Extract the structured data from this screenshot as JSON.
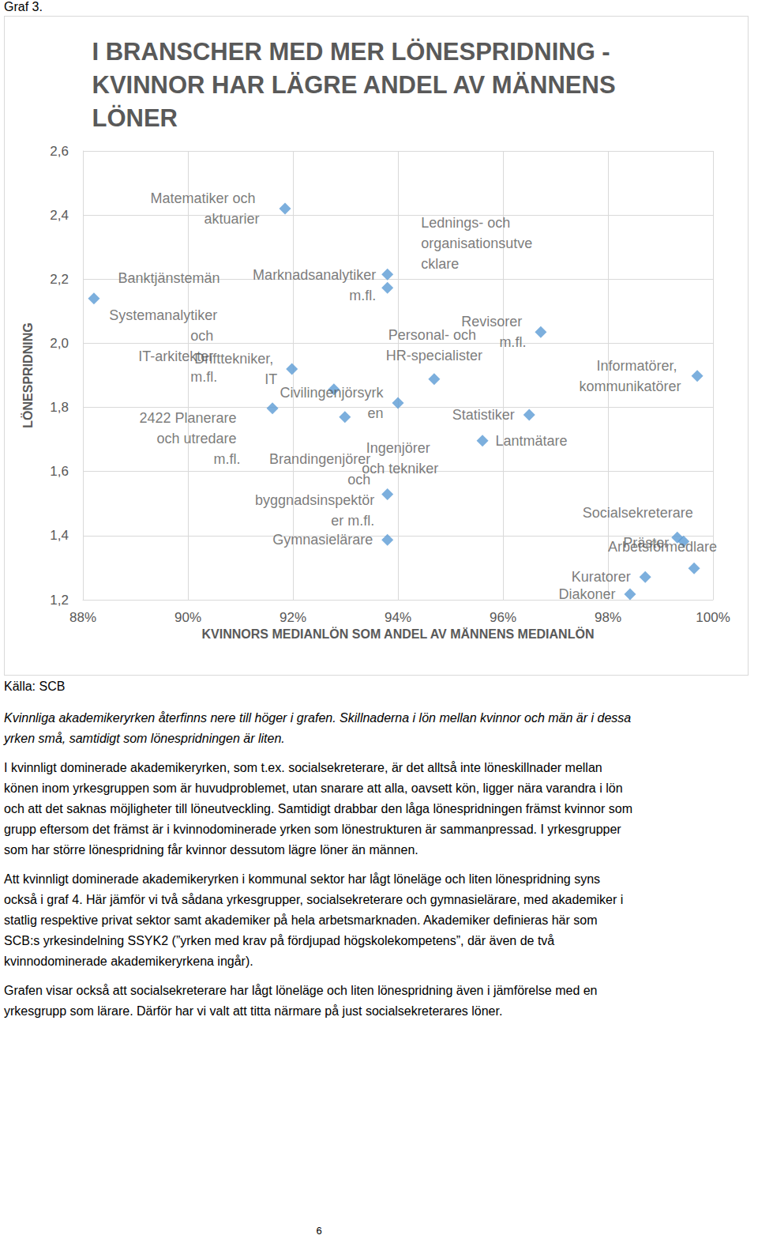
{
  "header": "Graf 3.",
  "chart_data": {
    "type": "scatter",
    "title": "I BRANSCHER MED MER LÖNESPRIDNING - KVINNOR HAR LÄGRE ANDEL AV MÄNNENS LÖNER",
    "x_label": "KVINNORS MEDIANLÖN SOM ANDEL AV MÄNNENS MEDIANLÖN",
    "y_label": "LÖNESPRIDNING",
    "color": "#5b9bd5",
    "marker": "diamond",
    "grid": true,
    "data_labels": true,
    "xlim": [
      88,
      100
    ],
    "xticks": [
      {
        "value": 88,
        "label": "88%"
      },
      {
        "value": 90,
        "label": "90%"
      },
      {
        "value": 92,
        "label": "92%"
      },
      {
        "value": 94,
        "label": "94%"
      },
      {
        "value": 96,
        "label": "96%"
      },
      {
        "value": 98,
        "label": "98%"
      },
      {
        "value": 100,
        "label": "100%"
      }
    ],
    "ylim": [
      1.2,
      2.6
    ],
    "yticks": [
      {
        "value": 1.2,
        "label": "1,2"
      },
      {
        "value": 1.4,
        "label": "1,4"
      },
      {
        "value": 1.6,
        "label": "1,6"
      },
      {
        "value": 1.8,
        "label": "1,8"
      },
      {
        "value": 2.0,
        "label": "2,0"
      },
      {
        "value": 2.2,
        "label": "2,2"
      },
      {
        "value": 2.4,
        "label": "2,4"
      },
      {
        "value": 2.6,
        "label": "2,6"
      }
    ],
    "points": [
      {
        "name": "Banktjänstemän",
        "x": 88.21,
        "y": 2.14
      },
      {
        "name": "Matematiker och aktuarier",
        "x": 91.85,
        "y": 2.42
      },
      {
        "name": "Marknadsanalytiker m.fl.",
        "x": 93.8,
        "y": 2.215
      },
      {
        "name": "Lednings- och organisationsutvecklare",
        "x": 93.8,
        "y": 2.173
      },
      {
        "name": "Systemanalytiker och IT-arkitekter m.fl.",
        "x": 92.78,
        "y": 1.856
      },
      {
        "name": "Drifttekniker, IT",
        "x": 91.98,
        "y": 1.92
      },
      {
        "name": "2422 Planerare och utredare m.fl.",
        "x": 91.61,
        "y": 1.797
      },
      {
        "name": "Civilingenjörsyrken",
        "x": 94.0,
        "y": 1.814
      },
      {
        "name": "Ingenjörer och tekniker",
        "x": 92.99,
        "y": 1.77
      },
      {
        "name": "Brandingenjörer och byggnadsinspektörer m.fl.",
        "x": 93.8,
        "y": 1.529
      },
      {
        "name": "Gymnasielärare",
        "x": 93.8,
        "y": 1.387
      },
      {
        "name": "Personal- och HR-specialister",
        "x": 94.69,
        "y": 1.888
      },
      {
        "name": "Revisorer m.fl.",
        "x": 96.72,
        "y": 2.035
      },
      {
        "name": "Statistiker",
        "x": 96.5,
        "y": 1.777
      },
      {
        "name": "Lantmätare",
        "x": 95.61,
        "y": 1.696
      },
      {
        "name": "Informatörer, kommunikatörer",
        "x": 99.7,
        "y": 1.898
      },
      {
        "name": "Socialsekreterare",
        "x": 99.32,
        "y": 1.394
      },
      {
        "name": "Präster",
        "x": 99.44,
        "y": 1.382
      },
      {
        "name": "Arbetsförmedlare",
        "x": 99.64,
        "y": 1.298
      },
      {
        "name": "Kuratorer",
        "x": 98.71,
        "y": 1.271
      },
      {
        "name": "Diakoner",
        "x": 98.42,
        "y": 1.217
      }
    ]
  },
  "source": "Källa: SCB",
  "caption": "Kvinnliga akademikeryrken återfinns nere till höger i grafen. Skillnaderna i lön mellan kvinnor och män är i dessa yrken små, samtidigt som lönespridningen är liten.",
  "paragraphs": [
    "I kvinnligt dominerade akademikeryrken, som t.ex. socialsekreterare, är det alltså inte löneskillnader mellan könen inom yrkesgruppen som är huvudproblemet, utan snarare att alla, oavsett kön, ligger nära varandra i lön och att det saknas möjligheter till löneutveckling. Samtidigt drabbar den låga lönespridningen främst kvinnor som grupp eftersom det främst är i kvinnodominerade yrken som lönestrukturen är sammanpressad. I yrkesgrupper som har större lönespridning får kvinnor dessutom lägre löner än männen.",
    "Att kvinnligt dominerade akademikeryrken i kommunal sektor har lågt löneläge och liten lönespridning syns också i graf 4. Här jämför vi två sådana yrkesgrupper, socialsekreterare och gymnasielärare, med akademiker i statlig respektive privat sektor samt akademiker på hela arbetsmarknaden. Akademiker definieras här som SCB:s yrkesindelning SSYK2 (”yrken med krav på fördjupad högskolekompetens”, där även de två kvinnodominerade akademikeryrkena ingår).",
    "Grafen visar också att socialsekreterare har lågt löneläge och liten lönespridning även i jämförelse med en yrkesgrupp som lärare. Därför har vi valt att titta närmare på just socialsekreterares löner."
  ],
  "page_number": "6"
}
